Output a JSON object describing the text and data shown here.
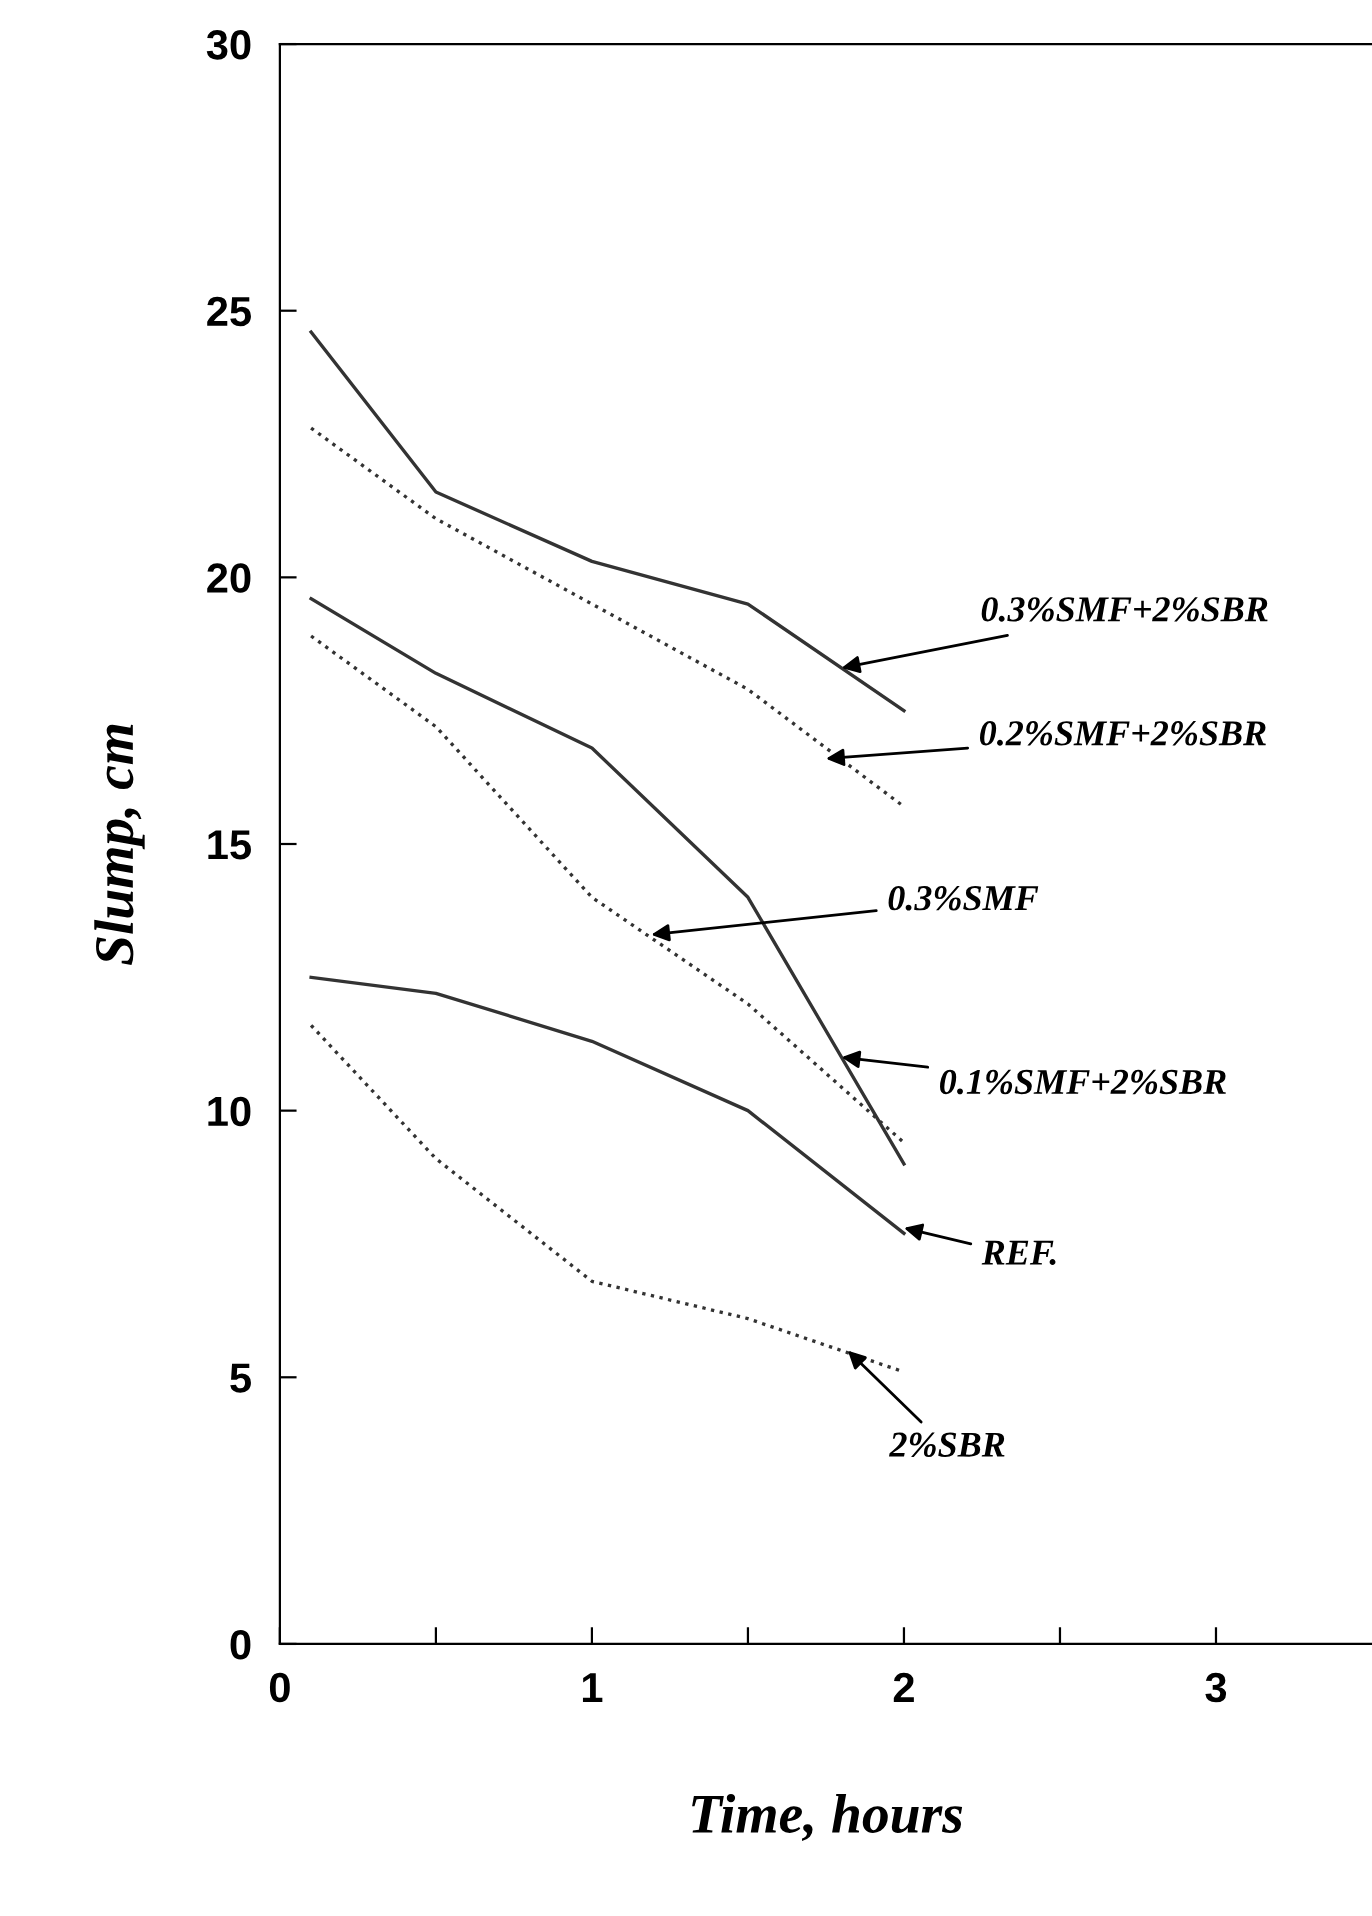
{
  "chart_data": {
    "type": "line",
    "xlabel": "Time, hours",
    "ylabel": "Slump, cm",
    "xlim": [
      0,
      3.5
    ],
    "ylim": [
      0,
      30
    ],
    "xticks": [
      0,
      {
        "value": 0.5,
        "label": null
      },
      1,
      {
        "value": 1.5,
        "label": null
      },
      2,
      {
        "value": 2.5,
        "label": null
      },
      3
    ],
    "yticks": [
      0,
      5,
      10,
      15,
      20,
      25,
      30
    ],
    "x": [
      0.1,
      0.5,
      1,
      1.5,
      2
    ],
    "grid": false,
    "legend": false,
    "marker": "none",
    "series": [
      {
        "color": "#333333",
        "line_style": "solid",
        "values": [
          24.6,
          21.6,
          20.3,
          19.5,
          17.5
        ]
      },
      {
        "color": "#333333",
        "line_style": "dotted",
        "values": [
          22.8,
          21.1,
          19.5,
          17.9,
          15.7
        ]
      },
      {
        "color": "#333333",
        "line_style": "solid",
        "values": [
          19.6,
          18.2,
          16.8,
          14.0,
          9.0
        ]
      },
      {
        "color": "#333333",
        "line_style": "dotted",
        "values": [
          18.9,
          17.2,
          14.0,
          12.0,
          9.4
        ]
      },
      {
        "color": "#333333",
        "line_style": "solid",
        "values": [
          12.5,
          12.2,
          11.3,
          10.0,
          7.7
        ]
      },
      {
        "color": "#333333",
        "line_style": "dotted",
        "values": [
          11.6,
          9.1,
          6.8,
          6.1,
          5.1
        ]
      }
    ],
    "annotations": [
      {
        "text": "0.3%SMF+2%SBR",
        "x": 1.8,
        "y": 18.3
      },
      {
        "text": "0.2%SMF+2%SBR",
        "x": 1.75,
        "y": 16.6
      },
      {
        "text": "0.3%SMF",
        "x": 1.19,
        "y": 13.3
      },
      {
        "text": "0.1%SMF+2%SBR",
        "x": 1.8,
        "y": 11.0
      },
      {
        "text": "REF.",
        "x": 2.0,
        "y": 7.8
      },
      {
        "text": "2%SBR",
        "x": 1.82,
        "y": 5.5
      }
    ]
  }
}
